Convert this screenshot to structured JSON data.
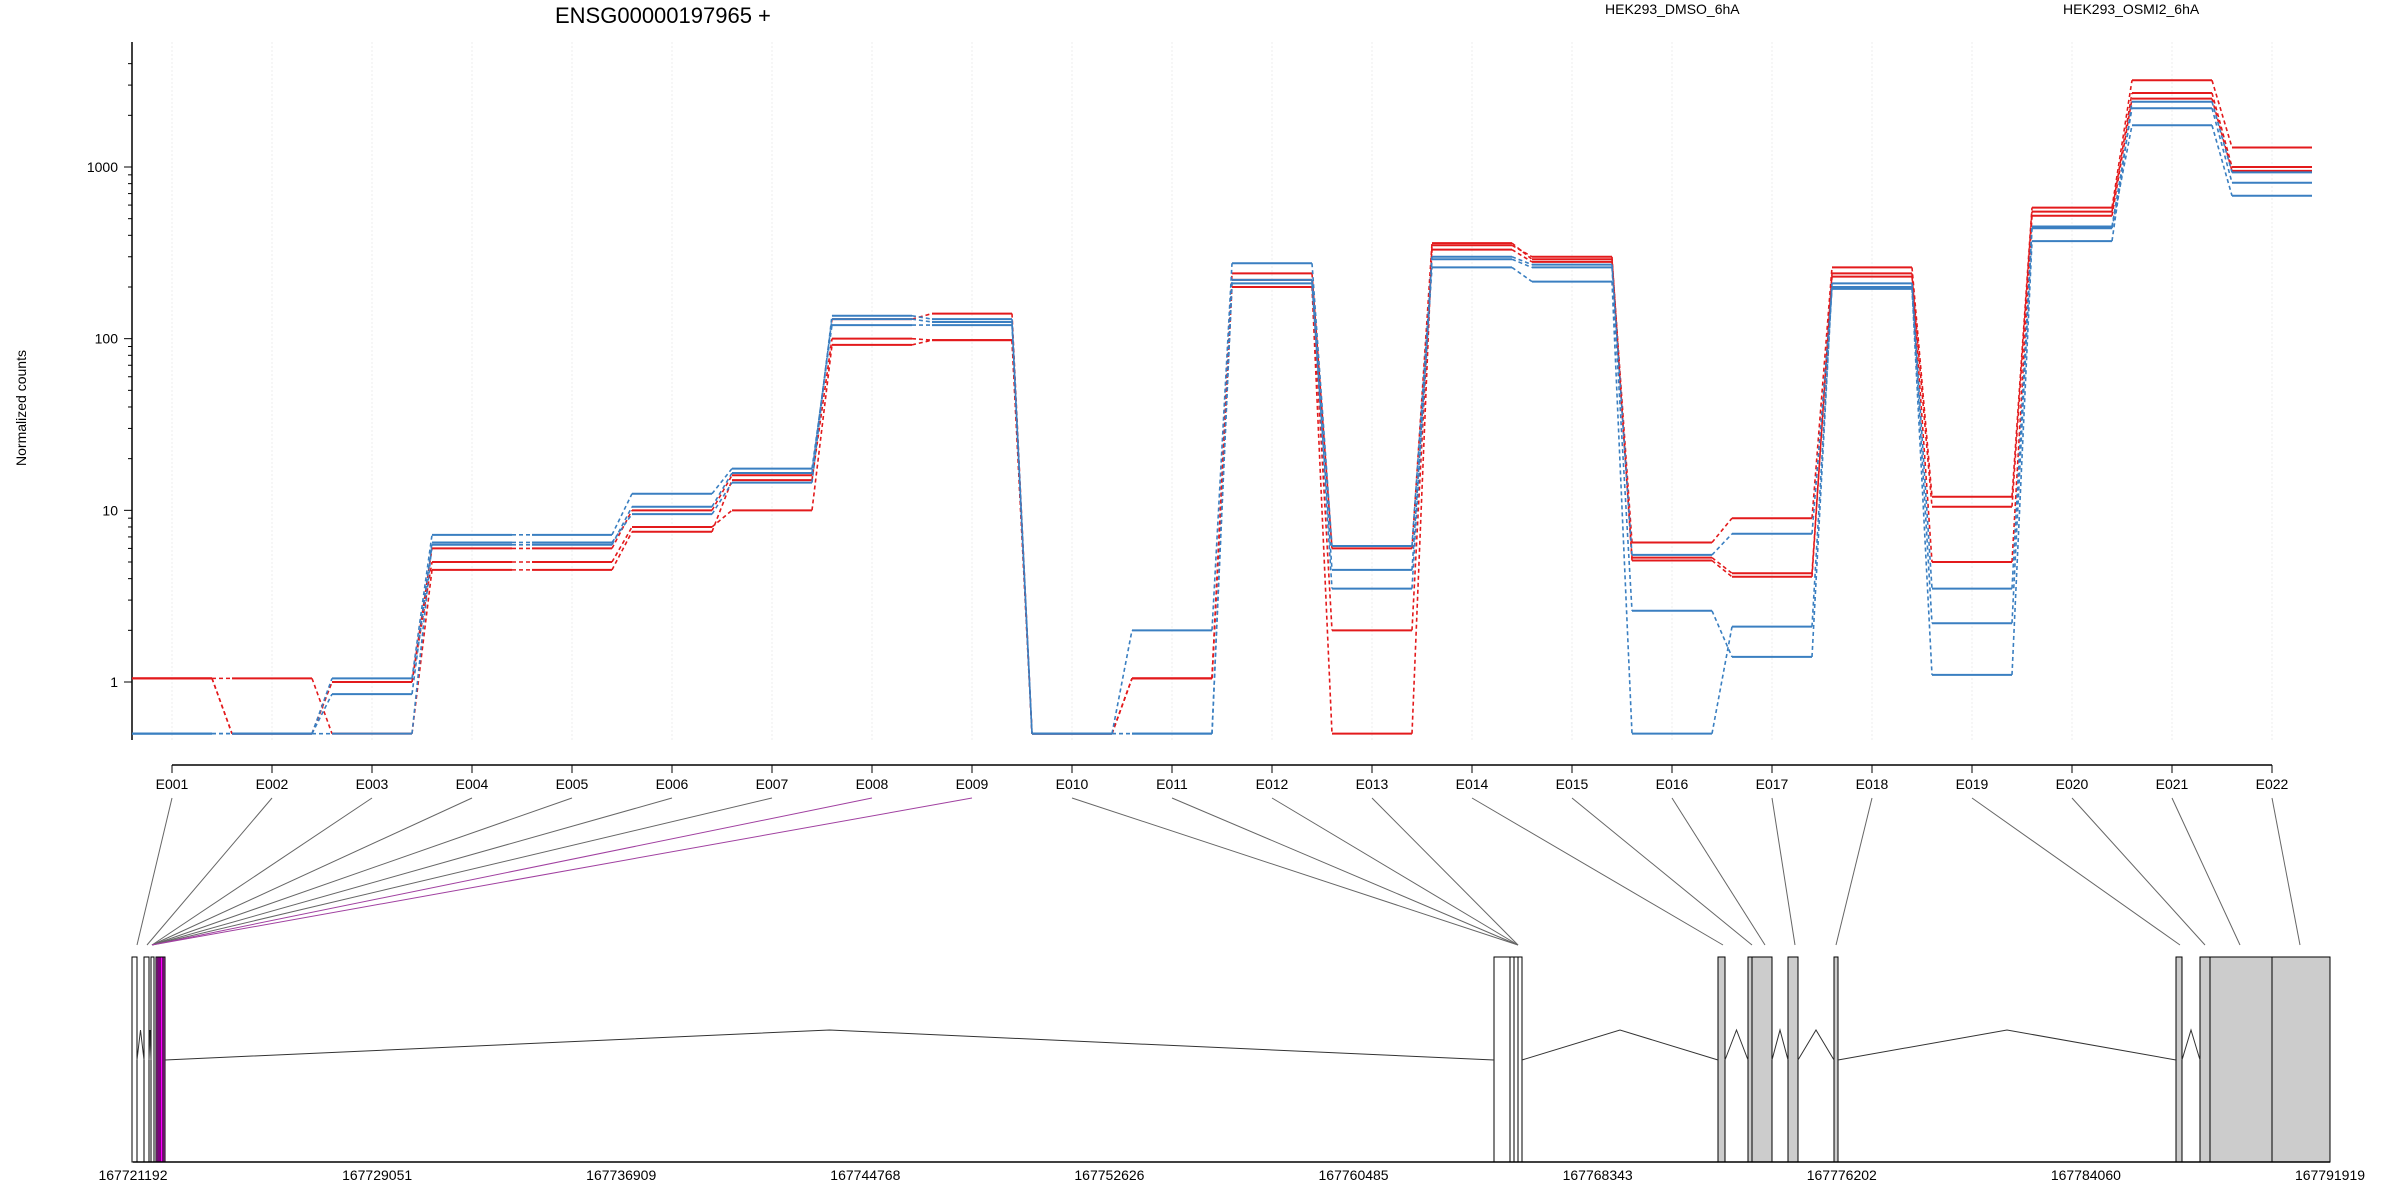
{
  "chart_data": {
    "type": "line",
    "title": "ENSG00000197965 +",
    "ylabel": "Normalized counts",
    "yscale": "log",
    "ylim": [
      0.5,
      4500
    ],
    "yticks": [
      1,
      10,
      100,
      1000
    ],
    "ytick_labels": [
      "1",
      "10",
      "100",
      "1000"
    ],
    "categories": [
      "E001",
      "E002",
      "E003",
      "E004",
      "E005",
      "E006",
      "E007",
      "E008",
      "E009",
      "E010",
      "E011",
      "E012",
      "E013",
      "E014",
      "E015",
      "E016",
      "E017",
      "E018",
      "E019",
      "E020",
      "E021",
      "E022"
    ],
    "legend": [
      "HEK293_DMSO_6hA",
      "HEK293_OSMI2_6hA"
    ],
    "series_colors": {
      "HEK293_DMSO_6hA": "#e31a1c",
      "HEK293_OSMI2_6hA": "#3a7fc1"
    },
    "series": [
      {
        "group": "HEK293_DMSO_6hA",
        "values": [
          1.05,
          0.5,
          1.0,
          6.0,
          6.0,
          10.0,
          16.0,
          130,
          140,
          0.5,
          1.05,
          240,
          6.0,
          360,
          290,
          6.5,
          9.0,
          260,
          12.0,
          580,
          3200,
          1300
        ]
      },
      {
        "group": "HEK293_DMSO_6hA",
        "values": [
          1.05,
          1.05,
          0.5,
          4.5,
          4.5,
          7.5,
          15.0,
          100,
          98,
          0.5,
          1.05,
          220,
          2.0,
          330,
          280,
          5.3,
          4.3,
          230,
          10.5,
          550,
          2700,
          1000
        ]
      },
      {
        "group": "HEK293_DMSO_6hA",
        "values": [
          1.05,
          0.5,
          1.0,
          5.0,
          5.0,
          8.0,
          10.0,
          92,
          98,
          0.5,
          1.05,
          200,
          0.5,
          350,
          300,
          5.1,
          4.1,
          240,
          5.0,
          520,
          2500,
          950
        ]
      },
      {
        "group": "HEK293_OSMI2_6hA",
        "values": [
          0.5,
          0.5,
          1.05,
          7.2,
          7.2,
          12.5,
          17.5,
          120,
          120,
          0.5,
          2.0,
          275,
          6.2,
          290,
          260,
          2.6,
          1.4,
          210,
          3.5,
          450,
          2200,
          810
        ]
      },
      {
        "group": "HEK293_OSMI2_6hA",
        "values": [
          0.5,
          0.5,
          0.85,
          6.5,
          6.5,
          9.5,
          14.5,
          136,
          130,
          0.5,
          0.5,
          210,
          4.5,
          260,
          215,
          0.5,
          2.1,
          200,
          2.2,
          440,
          1750,
          680
        ]
      },
      {
        "group": "HEK293_OSMI2_6hA",
        "values": [
          0.5,
          0.5,
          0.5,
          6.3,
          6.3,
          10.5,
          16.5,
          130,
          125,
          0.5,
          0.5,
          220,
          3.5,
          300,
          270,
          5.5,
          7.3,
          195,
          1.1,
          370,
          2400,
          930
        ]
      }
    ],
    "genomic_ticks": [
      "167721192",
      "167729051",
      "167736909",
      "167744768",
      "167752626",
      "167760485",
      "167768343",
      "167776202",
      "167784060",
      "167791919"
    ],
    "genomic_range": [
      167721192,
      167791919
    ],
    "grid": "vertical-light"
  }
}
